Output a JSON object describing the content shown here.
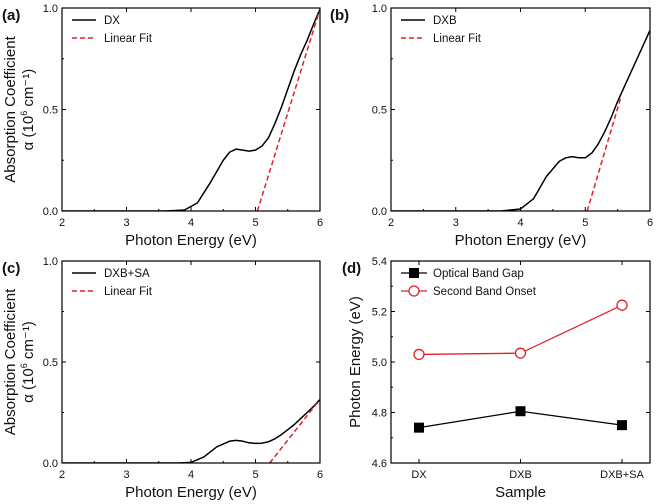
{
  "chart_data": [
    {
      "panel_label": "(a)",
      "type": "line",
      "xlabel": "Photon Energy (eV)",
      "ylabel_line1": "Absorption Coefficient",
      "ylabel_line2_prefix": "α (10",
      "ylabel_line2_exp": "6",
      "ylabel_line2_suffix": " cm⁻¹)",
      "xlim": [
        2,
        6
      ],
      "ylim": [
        0,
        1.0
      ],
      "xticks": [
        "2",
        "3",
        "4",
        "5",
        "6"
      ],
      "yticks": [
        "0.0",
        "0.5",
        "1.0"
      ],
      "legend_position": "top-left",
      "series": [
        {
          "name": "DX",
          "style": "solid",
          "color": "#000000",
          "x": [
            2.0,
            3.0,
            3.6,
            3.9,
            4.1,
            4.3,
            4.5,
            4.6,
            4.7,
            4.8,
            4.9,
            5.0,
            5.1,
            5.2,
            5.3,
            5.4,
            5.5,
            5.6,
            5.7,
            5.8,
            5.9,
            6.0
          ],
          "y": [
            0.0,
            0.0,
            0.0,
            0.005,
            0.04,
            0.14,
            0.25,
            0.29,
            0.305,
            0.3,
            0.295,
            0.3,
            0.32,
            0.36,
            0.43,
            0.51,
            0.6,
            0.69,
            0.77,
            0.84,
            0.92,
            0.995
          ]
        },
        {
          "name": "Linear Fit",
          "style": "dashed",
          "color": "#e0202a",
          "x": [
            5.03,
            6.0
          ],
          "y": [
            0.0,
            0.995
          ]
        }
      ]
    },
    {
      "panel_label": "(b)",
      "type": "line",
      "xlabel": "Photon Energy (eV)",
      "xlim": [
        2,
        6
      ],
      "ylim": [
        0,
        1.0
      ],
      "xticks": [
        "2",
        "3",
        "4",
        "5",
        "6"
      ],
      "yticks": [
        "0.0",
        "0.5",
        "1.0"
      ],
      "legend_position": "top-left",
      "series": [
        {
          "name": "DXB",
          "style": "solid",
          "color": "#000000",
          "x": [
            2.0,
            3.0,
            3.7,
            4.0,
            4.2,
            4.4,
            4.6,
            4.7,
            4.8,
            4.9,
            5.0,
            5.1,
            5.2,
            5.3,
            5.4,
            5.5,
            5.6,
            5.7,
            5.8,
            5.9,
            6.0
          ],
          "y": [
            0.0,
            0.0,
            0.0,
            0.01,
            0.06,
            0.17,
            0.245,
            0.262,
            0.268,
            0.262,
            0.262,
            0.285,
            0.33,
            0.39,
            0.46,
            0.54,
            0.61,
            0.68,
            0.75,
            0.82,
            0.89
          ]
        },
        {
          "name": "Linear Fit",
          "style": "dashed",
          "color": "#e0202a",
          "x": [
            5.03,
            5.55
          ],
          "y": [
            0.0,
            0.56
          ]
        }
      ]
    },
    {
      "panel_label": "(c)",
      "type": "line",
      "xlabel": "Photon Energy (eV)",
      "ylabel_line1": "Absorption Coefficient",
      "ylabel_line2_prefix": "α (10",
      "ylabel_line2_exp": "6",
      "ylabel_line2_suffix": " cm⁻¹)",
      "xlim": [
        2,
        6
      ],
      "ylim": [
        0,
        1.0
      ],
      "xticks": [
        "2",
        "3",
        "4",
        "5",
        "6"
      ],
      "yticks": [
        "0.0",
        "0.5",
        "1.0"
      ],
      "legend_position": "top-left",
      "series": [
        {
          "name": "DXB+SA",
          "style": "solid",
          "color": "#000000",
          "x": [
            2.0,
            3.0,
            3.8,
            4.0,
            4.2,
            4.4,
            4.6,
            4.7,
            4.8,
            4.9,
            5.0,
            5.1,
            5.2,
            5.3,
            5.4,
            5.5,
            5.6,
            5.7,
            5.8,
            5.9,
            6.0
          ],
          "y": [
            0.0,
            0.0,
            0.0,
            0.003,
            0.03,
            0.08,
            0.108,
            0.112,
            0.108,
            0.1,
            0.097,
            0.098,
            0.105,
            0.12,
            0.14,
            0.165,
            0.19,
            0.22,
            0.25,
            0.28,
            0.315
          ]
        },
        {
          "name": "Linear Fit",
          "style": "dashed",
          "color": "#e0202a",
          "x": [
            5.22,
            6.0
          ],
          "y": [
            0.0,
            0.315
          ]
        }
      ]
    },
    {
      "panel_label": "(d)",
      "type": "line",
      "xlabel": "Sample",
      "ylabel": "Photon Energy (eV)",
      "categories": [
        "DX",
        "DXB",
        "DXB+SA"
      ],
      "ylim": [
        4.6,
        5.4
      ],
      "yticks": [
        "4.6",
        "4.8",
        "5.0",
        "5.2",
        "5.4"
      ],
      "legend_position": "top-left",
      "series": [
        {
          "name": "Optical Band Gap",
          "marker": "filled-square",
          "color": "#000000",
          "values": [
            4.74,
            4.805,
            4.75
          ]
        },
        {
          "name": "Second Band Onset",
          "marker": "open-circle",
          "color": "#e0202a",
          "values": [
            5.03,
            5.035,
            5.225
          ]
        }
      ]
    }
  ]
}
